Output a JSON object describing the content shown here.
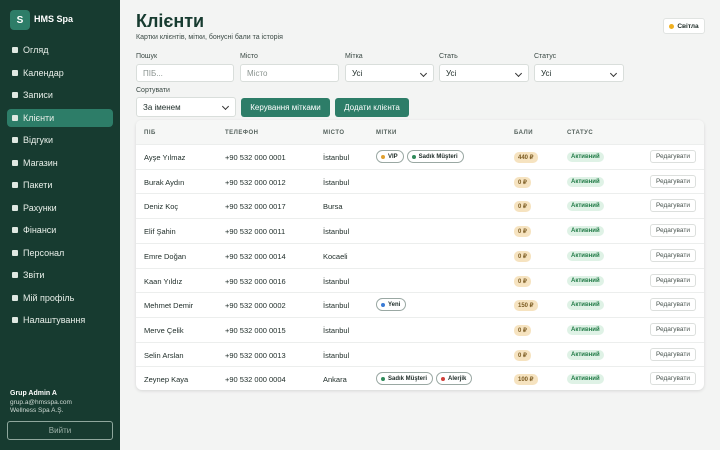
{
  "sidebar": {
    "logo": "S",
    "brand": "HMS Spa",
    "nav": [
      {
        "label": "Огляд"
      },
      {
        "label": "Календар"
      },
      {
        "label": "Записи"
      },
      {
        "label": "Клієнти",
        "active": true
      },
      {
        "label": "Відгуки"
      },
      {
        "label": "Магазин"
      },
      {
        "label": "Пакети"
      },
      {
        "label": "Рахунки"
      },
      {
        "label": "Фінанси"
      },
      {
        "label": "Персонал"
      },
      {
        "label": "Звіти"
      },
      {
        "label": "Мій профіль"
      },
      {
        "label": "Налаштування"
      }
    ],
    "user": {
      "name": "Grup Admin A",
      "email": "grup.a@hmsspa.com",
      "company": "Wellness Spa A.Ş."
    },
    "logout": "Вийти"
  },
  "header": {
    "title": "Клієнти",
    "subtitle": "Картки клієнтів, мітки, бонусні бали та історія",
    "theme": "Світла"
  },
  "filters": {
    "search": {
      "label": "Пошук",
      "placeholder": "ПІБ..."
    },
    "city": {
      "label": "Місто",
      "placeholder": "Місто"
    },
    "tag": {
      "label": "Мітка",
      "value": "Усі"
    },
    "gender": {
      "label": "Стать",
      "value": "Усі"
    },
    "status": {
      "label": "Статус",
      "value": "Усі"
    },
    "sort": {
      "label": "Сортувати",
      "value": "За іменем"
    },
    "buttons": [
      "Керування мітками",
      "Додати клієнта"
    ]
  },
  "table": {
    "columns": [
      "ПІБ",
      "ТЕЛЕФОН",
      "МІСТО",
      "МІТКИ",
      "БАЛИ",
      "СТАТУС"
    ],
    "rows": [
      {
        "name": "Ayşe Yılmaz",
        "phone": "+90 532 000 0001",
        "city": "İstanbul",
        "tags": [
          {
            "label": "VIP",
            "color": "#e0a030"
          },
          {
            "label": "Sadık Müşteri",
            "color": "#2f8a5a"
          }
        ],
        "points": "440 ₽",
        "status": "Активний",
        "action": "Редагувати"
      },
      {
        "name": "Burak Aydın",
        "phone": "+90 532 000 0012",
        "city": "İstanbul",
        "tags": [],
        "points": "0 ₽",
        "status": "Активний",
        "action": "Редагувати"
      },
      {
        "name": "Deniz Koç",
        "phone": "+90 532 000 0017",
        "city": "Bursa",
        "tags": [],
        "points": "0 ₽",
        "status": "Активний",
        "action": "Редагувати"
      },
      {
        "name": "Elif Şahin",
        "phone": "+90 532 000 0011",
        "city": "İstanbul",
        "tags": [],
        "points": "0 ₽",
        "status": "Активний",
        "action": "Редагувати"
      },
      {
        "name": "Emre Doğan",
        "phone": "+90 532 000 0014",
        "city": "Kocaeli",
        "tags": [],
        "points": "0 ₽",
        "status": "Активний",
        "action": "Редагувати"
      },
      {
        "name": "Kaan Yıldız",
        "phone": "+90 532 000 0016",
        "city": "İstanbul",
        "tags": [],
        "points": "0 ₽",
        "status": "Активний",
        "action": "Редагувати"
      },
      {
        "name": "Mehmet Demir",
        "phone": "+90 532 000 0002",
        "city": "İstanbul",
        "tags": [
          {
            "label": "Yeni",
            "color": "#3a7bd5"
          }
        ],
        "points": "150 ₽",
        "status": "Активний",
        "action": "Редагувати"
      },
      {
        "name": "Merve Çelik",
        "phone": "+90 532 000 0015",
        "city": "İstanbul",
        "tags": [],
        "points": "0 ₽",
        "status": "Активний",
        "action": "Редагувати"
      },
      {
        "name": "Selin Arslan",
        "phone": "+90 532 000 0013",
        "city": "İstanbul",
        "tags": [],
        "points": "0 ₽",
        "status": "Активний",
        "action": "Редагувати"
      },
      {
        "name": "Zeynep Kaya",
        "phone": "+90 532 000 0004",
        "city": "Ankara",
        "tags": [
          {
            "label": "Sadık Müşteri",
            "color": "#2f8a5a"
          },
          {
            "label": "Alerjik",
            "color": "#d0403a"
          }
        ],
        "points": "100 ₽",
        "status": "Активний",
        "action": "Редагувати"
      }
    ]
  }
}
